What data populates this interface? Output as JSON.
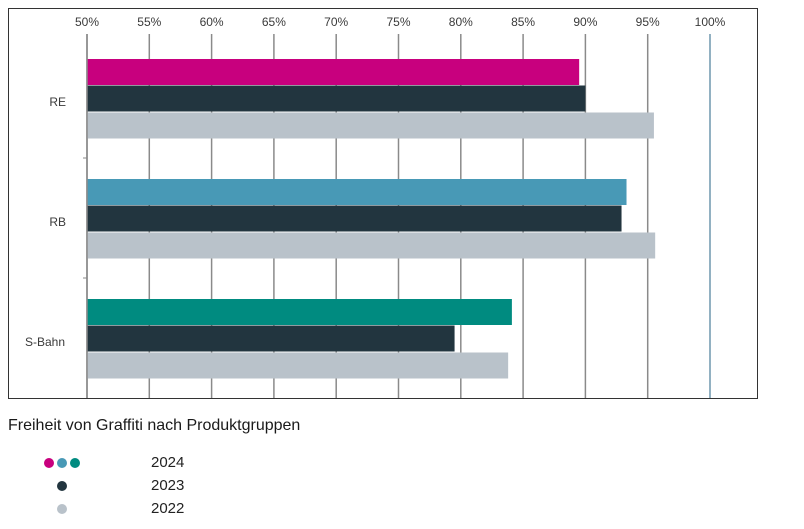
{
  "chart_data": {
    "type": "bar",
    "orientation": "horizontal",
    "title": "Freiheit von Graffiti nach Produktgruppen",
    "categories": [
      "RE",
      "RB",
      "S-Bahn"
    ],
    "xlim": [
      50,
      100
    ],
    "x_ticks": [
      "50%",
      "55%",
      "60%",
      "65%",
      "70%",
      "75%",
      "80%",
      "85%",
      "90%",
      "95%",
      "100%"
    ],
    "x_tick_values": [
      50,
      55,
      60,
      65,
      70,
      75,
      80,
      85,
      90,
      95,
      100
    ],
    "grid": true,
    "legend_position": "bottom-left",
    "series": [
      {
        "name": "2024",
        "values": [
          89.5,
          93.3,
          84.1
        ],
        "colors": [
          "#c8007e",
          "#4899b6",
          "#008b80"
        ]
      },
      {
        "name": "2023",
        "values": [
          90.0,
          92.9,
          79.5
        ],
        "colors": [
          "#22353f",
          "#22353f",
          "#22353f"
        ]
      },
      {
        "name": "2022",
        "values": [
          95.5,
          95.6,
          83.8
        ],
        "colors": [
          "#b9c2ca",
          "#b9c2ca",
          "#b9c2ca"
        ]
      }
    ]
  },
  "legend": {
    "items": [
      {
        "label": "2024",
        "dot_colors": [
          "#c8007e",
          "#4899b6",
          "#008b80"
        ]
      },
      {
        "label": "2023",
        "dot_colors": [
          "#22353f"
        ]
      },
      {
        "label": "2022",
        "dot_colors": [
          "#b9c2ca"
        ]
      }
    ]
  },
  "colors": {
    "gridline": "#8a8a8a",
    "reference_line": "#6f97ad",
    "frame": "#333333"
  }
}
